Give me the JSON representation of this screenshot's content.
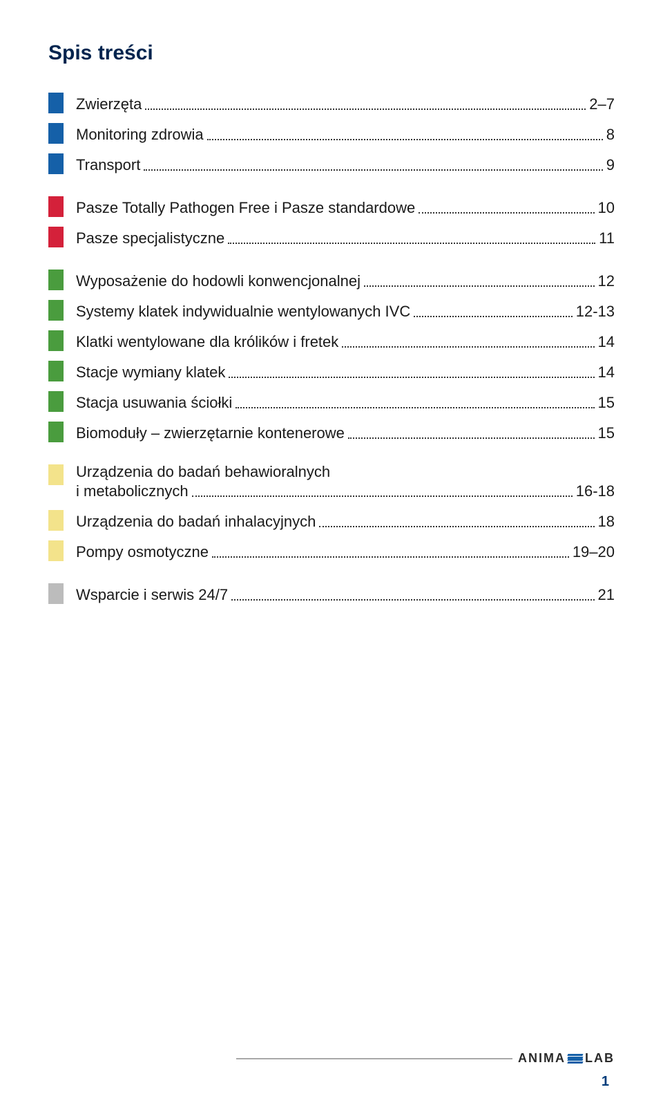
{
  "title": "Spis treści",
  "colors": {
    "blue": "#1560a8",
    "red": "#d4213a",
    "green": "#4a9c3e",
    "yellow": "#f3e38b",
    "grey": "#bcbcbc",
    "title_color": "#00244e",
    "text_color": "#1a1a1a",
    "footer_line": "#a8a8a8",
    "page_number_color": "#003b7a"
  },
  "toc": {
    "group1": [
      {
        "label": "Zwierzęta",
        "page": "2–7"
      },
      {
        "label": "Monitoring zdrowia",
        "page": "8"
      },
      {
        "label": "Transport",
        "page": "9"
      }
    ],
    "group2": [
      {
        "label": "Pasze Totally Pathogen Free i Pasze standardowe",
        "page": "10"
      },
      {
        "label": "Pasze specjalistyczne",
        "page": "11"
      }
    ],
    "group3": [
      {
        "label": "Wyposażenie do hodowli konwencjonalnej",
        "page": "12"
      },
      {
        "label": "Systemy klatek indywidualnie wentylowanych IVC",
        "page": "12-13"
      },
      {
        "label": "Klatki wentylowane dla królików i fretek",
        "page": "14"
      },
      {
        "label": "Stacje wymiany klatek",
        "page": "14"
      },
      {
        "label": "Stacja usuwania ściołki",
        "page": "15"
      },
      {
        "label": "Biomoduły – zwierzętarnie kontenerowe",
        "page": "15"
      }
    ],
    "group4_twoline": {
      "line1": "Urządzenia do badań behawioralnych",
      "line2": "i metabolicznych",
      "page": "16-18"
    },
    "group4_rest": [
      {
        "label": "Urządzenia do badań inhalacyjnych",
        "page": "18"
      },
      {
        "label": "Pompy osmotyczne",
        "page": "19–20"
      }
    ],
    "group5": [
      {
        "label": "Wsparcie i serwis 24/7",
        "page": "21"
      }
    ]
  },
  "logo": {
    "part1": "ANIMA",
    "part2": "LAB"
  },
  "page_number": "1"
}
